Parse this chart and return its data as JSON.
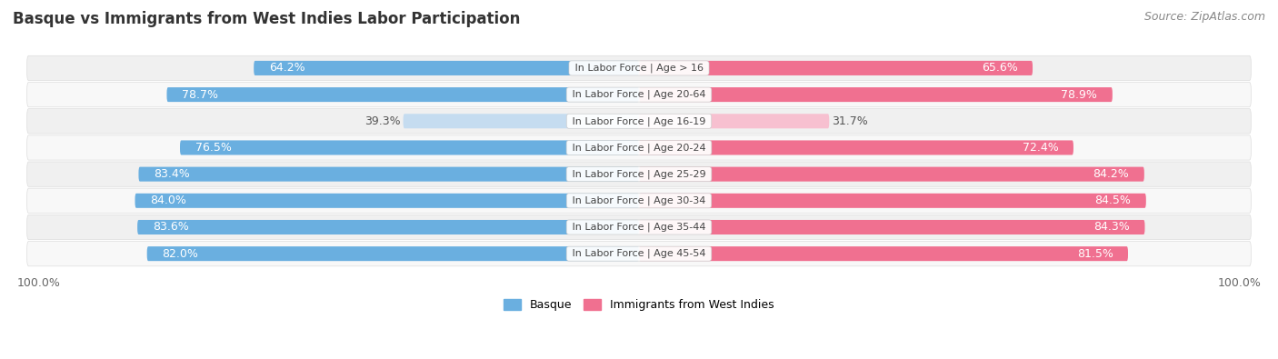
{
  "title": "Basque vs Immigrants from West Indies Labor Participation",
  "source": "Source: ZipAtlas.com",
  "categories": [
    "In Labor Force | Age > 16",
    "In Labor Force | Age 20-64",
    "In Labor Force | Age 16-19",
    "In Labor Force | Age 20-24",
    "In Labor Force | Age 25-29",
    "In Labor Force | Age 30-34",
    "In Labor Force | Age 35-44",
    "In Labor Force | Age 45-54"
  ],
  "basque_values": [
    64.2,
    78.7,
    39.3,
    76.5,
    83.4,
    84.0,
    83.6,
    82.0
  ],
  "immigrant_values": [
    65.6,
    78.9,
    31.7,
    72.4,
    84.2,
    84.5,
    84.3,
    81.5
  ],
  "basque_color": "#6aafe0",
  "basque_color_light": "#c5dcf0",
  "immigrant_color": "#f07090",
  "immigrant_color_light": "#f7c0d0",
  "row_bg_even": "#f0f0f0",
  "row_bg_odd": "#f8f8f8",
  "label_basque": "Basque",
  "label_immigrant": "Immigrants from West Indies",
  "max_value": 100.0,
  "title_fontsize": 12,
  "source_fontsize": 9,
  "bar_label_fontsize": 9,
  "category_fontsize": 8,
  "axis_label_fontsize": 9
}
